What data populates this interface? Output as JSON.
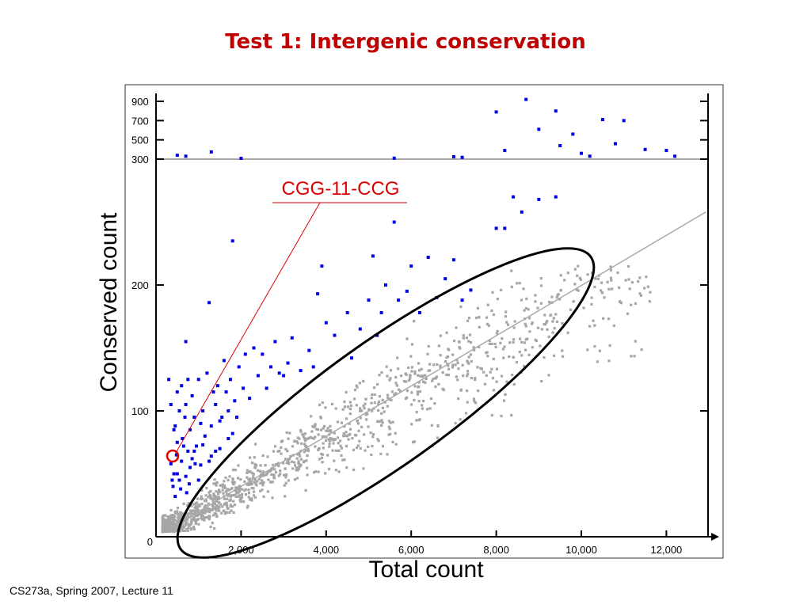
{
  "slide": {
    "title": "Test 1: Intergenic conservation",
    "footer": "CS273a, Spring 2007, Lecture 11"
  },
  "colors": {
    "title": "#c00000",
    "significant_points": "#0000e6",
    "background_points": "#a6a6a6",
    "annotation": "#dd0000",
    "ellipse": "#000000"
  },
  "chart_data": {
    "type": "scatter",
    "title": "Test 1: Intergenic conservation",
    "xlabel": "Total count",
    "ylabel": "Conserved count",
    "xlim": [
      0,
      13300
    ],
    "x_ticks": [
      {
        "value": 2000,
        "label": "2,000"
      },
      {
        "value": 4000,
        "label": "4,000"
      },
      {
        "value": 6000,
        "label": "6,000"
      },
      {
        "value": 8000,
        "label": "8,000"
      },
      {
        "value": 10000,
        "label": "10,000"
      },
      {
        "value": 12000,
        "label": "12,000"
      }
    ],
    "y_axis": "piecewise linear; 0-300 on the lower scale, 300-900 compressed at top",
    "y_ticks": [
      {
        "value": 0,
        "label": "0"
      },
      {
        "value": 100,
        "label": "100"
      },
      {
        "value": 200,
        "label": "200"
      },
      {
        "value": 300,
        "label": "300"
      },
      {
        "value": 500,
        "label": "500"
      },
      {
        "value": 700,
        "label": "700"
      },
      {
        "value": 900,
        "label": "900"
      }
    ],
    "threshold_line_y": 300,
    "trend_line": {
      "from": [
        0,
        0
      ],
      "to": [
        13300,
        258
      ]
    },
    "annotation": {
      "label": "CGG-11-CCG",
      "point": [
        400,
        67
      ]
    },
    "series": [
      {
        "group": "significant",
        "color": "#0000e6",
        "points": [
          [
            300,
            125
          ],
          [
            350,
            105
          ],
          [
            420,
            85
          ],
          [
            450,
            88
          ],
          [
            500,
            75
          ],
          [
            500,
            115
          ],
          [
            550,
            100
          ],
          [
            600,
            120
          ],
          [
            620,
            78
          ],
          [
            680,
            95
          ],
          [
            700,
            155
          ],
          [
            700,
            105
          ],
          [
            750,
            125
          ],
          [
            800,
            85
          ],
          [
            850,
            112
          ],
          [
            900,
            95
          ],
          [
            950,
            72
          ],
          [
            1000,
            125
          ],
          [
            1050,
            90
          ],
          [
            1100,
            100
          ],
          [
            1150,
            80
          ],
          [
            1200,
            130
          ],
          [
            1250,
            186
          ],
          [
            1300,
            88
          ],
          [
            1350,
            115
          ],
          [
            1400,
            105
          ],
          [
            1450,
            120
          ],
          [
            1500,
            92
          ],
          [
            1550,
            95
          ],
          [
            1600,
            140
          ],
          [
            1650,
            115
          ],
          [
            1700,
            100
          ],
          [
            1750,
            125
          ],
          [
            1800,
            235
          ],
          [
            1850,
            108
          ],
          [
            1900,
            95
          ],
          [
            1950,
            135
          ],
          [
            2050,
            118
          ],
          [
            2100,
            145
          ],
          [
            2200,
            110
          ],
          [
            2300,
            150
          ],
          [
            2400,
            128
          ],
          [
            2500,
            145
          ],
          [
            2600,
            118
          ],
          [
            2700,
            135
          ],
          [
            2800,
            155
          ],
          [
            2900,
            130
          ],
          [
            3000,
            128
          ],
          [
            3100,
            138
          ],
          [
            3200,
            158
          ],
          [
            3400,
            132
          ],
          [
            3600,
            148
          ],
          [
            3700,
            135
          ],
          [
            3800,
            193
          ],
          [
            3900,
            215
          ],
          [
            4000,
            170
          ],
          [
            4200,
            160
          ],
          [
            4500,
            178
          ],
          [
            4600,
            142
          ],
          [
            4800,
            165
          ],
          [
            5000,
            188
          ],
          [
            5100,
            223
          ],
          [
            5200,
            160
          ],
          [
            5300,
            178
          ],
          [
            5400,
            200
          ],
          [
            5600,
            250
          ],
          [
            5700,
            188
          ],
          [
            5900,
            195
          ],
          [
            6000,
            215
          ],
          [
            6200,
            178
          ],
          [
            6400,
            222
          ],
          [
            6600,
            190
          ],
          [
            6800,
            205
          ],
          [
            7000,
            220
          ],
          [
            7200,
            188
          ],
          [
            7400,
            196
          ],
          [
            8000,
            245
          ],
          [
            8200,
            245
          ],
          [
            8400,
            270
          ],
          [
            8600,
            258
          ],
          [
            9000,
            268
          ],
          [
            9400,
            270
          ],
          [
            400,
            40
          ],
          [
            500,
            50
          ],
          [
            600,
            60
          ],
          [
            700,
            48
          ],
          [
            800,
            55
          ],
          [
            450,
            32
          ],
          [
            550,
            45
          ],
          [
            750,
            68
          ],
          [
            850,
            62
          ],
          [
            650,
            72
          ],
          [
            350,
            58
          ],
          [
            480,
            65
          ],
          [
            580,
            38
          ],
          [
            780,
            42
          ],
          [
            920,
            58
          ],
          [
            420,
            50
          ],
          [
            720,
            35
          ],
          [
            380,
            45
          ],
          [
            1100,
            73
          ],
          [
            1300,
            64
          ],
          [
            1500,
            70
          ],
          [
            1700,
            78
          ],
          [
            1050,
            57
          ],
          [
            1250,
            60
          ],
          [
            900,
            68
          ],
          [
            1800,
            82
          ],
          [
            1000,
            45
          ],
          [
            1400,
            68
          ],
          [
            500,
            340
          ],
          [
            700,
            330
          ],
          [
            1300,
            375
          ],
          [
            2000,
            308
          ],
          [
            5600,
            310
          ],
          [
            7000,
            325
          ],
          [
            7200,
            318
          ],
          [
            8000,
            790
          ],
          [
            8200,
            390
          ],
          [
            8700,
            920
          ],
          [
            9000,
            610
          ],
          [
            9400,
            800
          ],
          [
            9800,
            560
          ],
          [
            10000,
            360
          ],
          [
            10500,
            710
          ],
          [
            11000,
            700
          ],
          [
            11500,
            400
          ],
          [
            12000,
            390
          ],
          [
            12200,
            330
          ],
          [
            10200,
            330
          ],
          [
            9500,
            440
          ],
          [
            10800,
            460
          ]
        ]
      }
    ],
    "background_points": {
      "group": "background",
      "color": "#a6a6a6",
      "description": "dense cloud of grey points distributed along the trend line, roughly 1,500 points"
    }
  }
}
